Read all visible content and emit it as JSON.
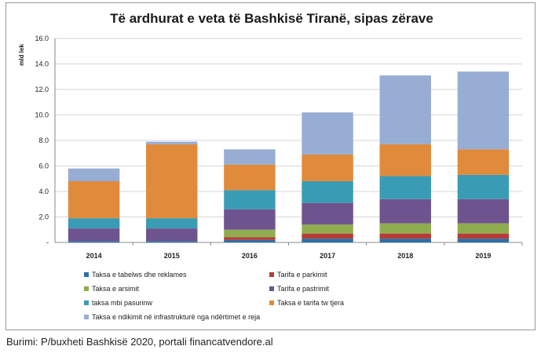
{
  "chart_data": {
    "type": "bar",
    "stacked": true,
    "title": "Të ardhurat e veta të Bashkisë Tiranë, sipas zërave",
    "ylabel": "mld lek",
    "xlabel": "",
    "ylim": [
      0,
      16
    ],
    "yticks": [
      "-",
      "2.0",
      "4.0",
      "6.0",
      "8.0",
      "10.0",
      "12.0",
      "14.0",
      "16.0"
    ],
    "grid": true,
    "legend_position": "bottom",
    "categories": [
      "2014",
      "2015",
      "2016",
      "2017",
      "2018",
      "2019"
    ],
    "series": [
      {
        "name": "Taksa e tabelws dhe reklames",
        "color": "#2e6fa8",
        "values": [
          0.1,
          0.1,
          0.2,
          0.3,
          0.3,
          0.3
        ]
      },
      {
        "name": "Tarifa e parkimit",
        "color": "#b83a37",
        "values": [
          0.0,
          0.0,
          0.2,
          0.4,
          0.4,
          0.4
        ]
      },
      {
        "name": "Taksa e arsimit",
        "color": "#8fad4f",
        "values": [
          0.0,
          0.0,
          0.6,
          0.7,
          0.8,
          0.8
        ]
      },
      {
        "name": "Tarifa e pastrimit",
        "color": "#6e548e",
        "values": [
          1.0,
          1.0,
          1.6,
          1.7,
          1.9,
          1.9
        ]
      },
      {
        "name": "taksa mbi pasurinw",
        "color": "#3a9cb4",
        "values": [
          0.8,
          0.8,
          1.5,
          1.7,
          1.8,
          1.9
        ]
      },
      {
        "name": "Taksa e tarifa tw tjera",
        "color": "#e08a3c",
        "values": [
          2.9,
          5.8,
          2.0,
          2.1,
          2.5,
          2.0
        ]
      },
      {
        "name": "Taksa e ndikimit në infrastrukturë nga ndërtimet e reja",
        "color": "#97add3",
        "values": [
          1.0,
          0.2,
          1.2,
          3.3,
          5.4,
          6.1
        ]
      }
    ]
  },
  "source": "Burimi: P/buxheti Bashkisë 2020, portali financatvendore.al"
}
